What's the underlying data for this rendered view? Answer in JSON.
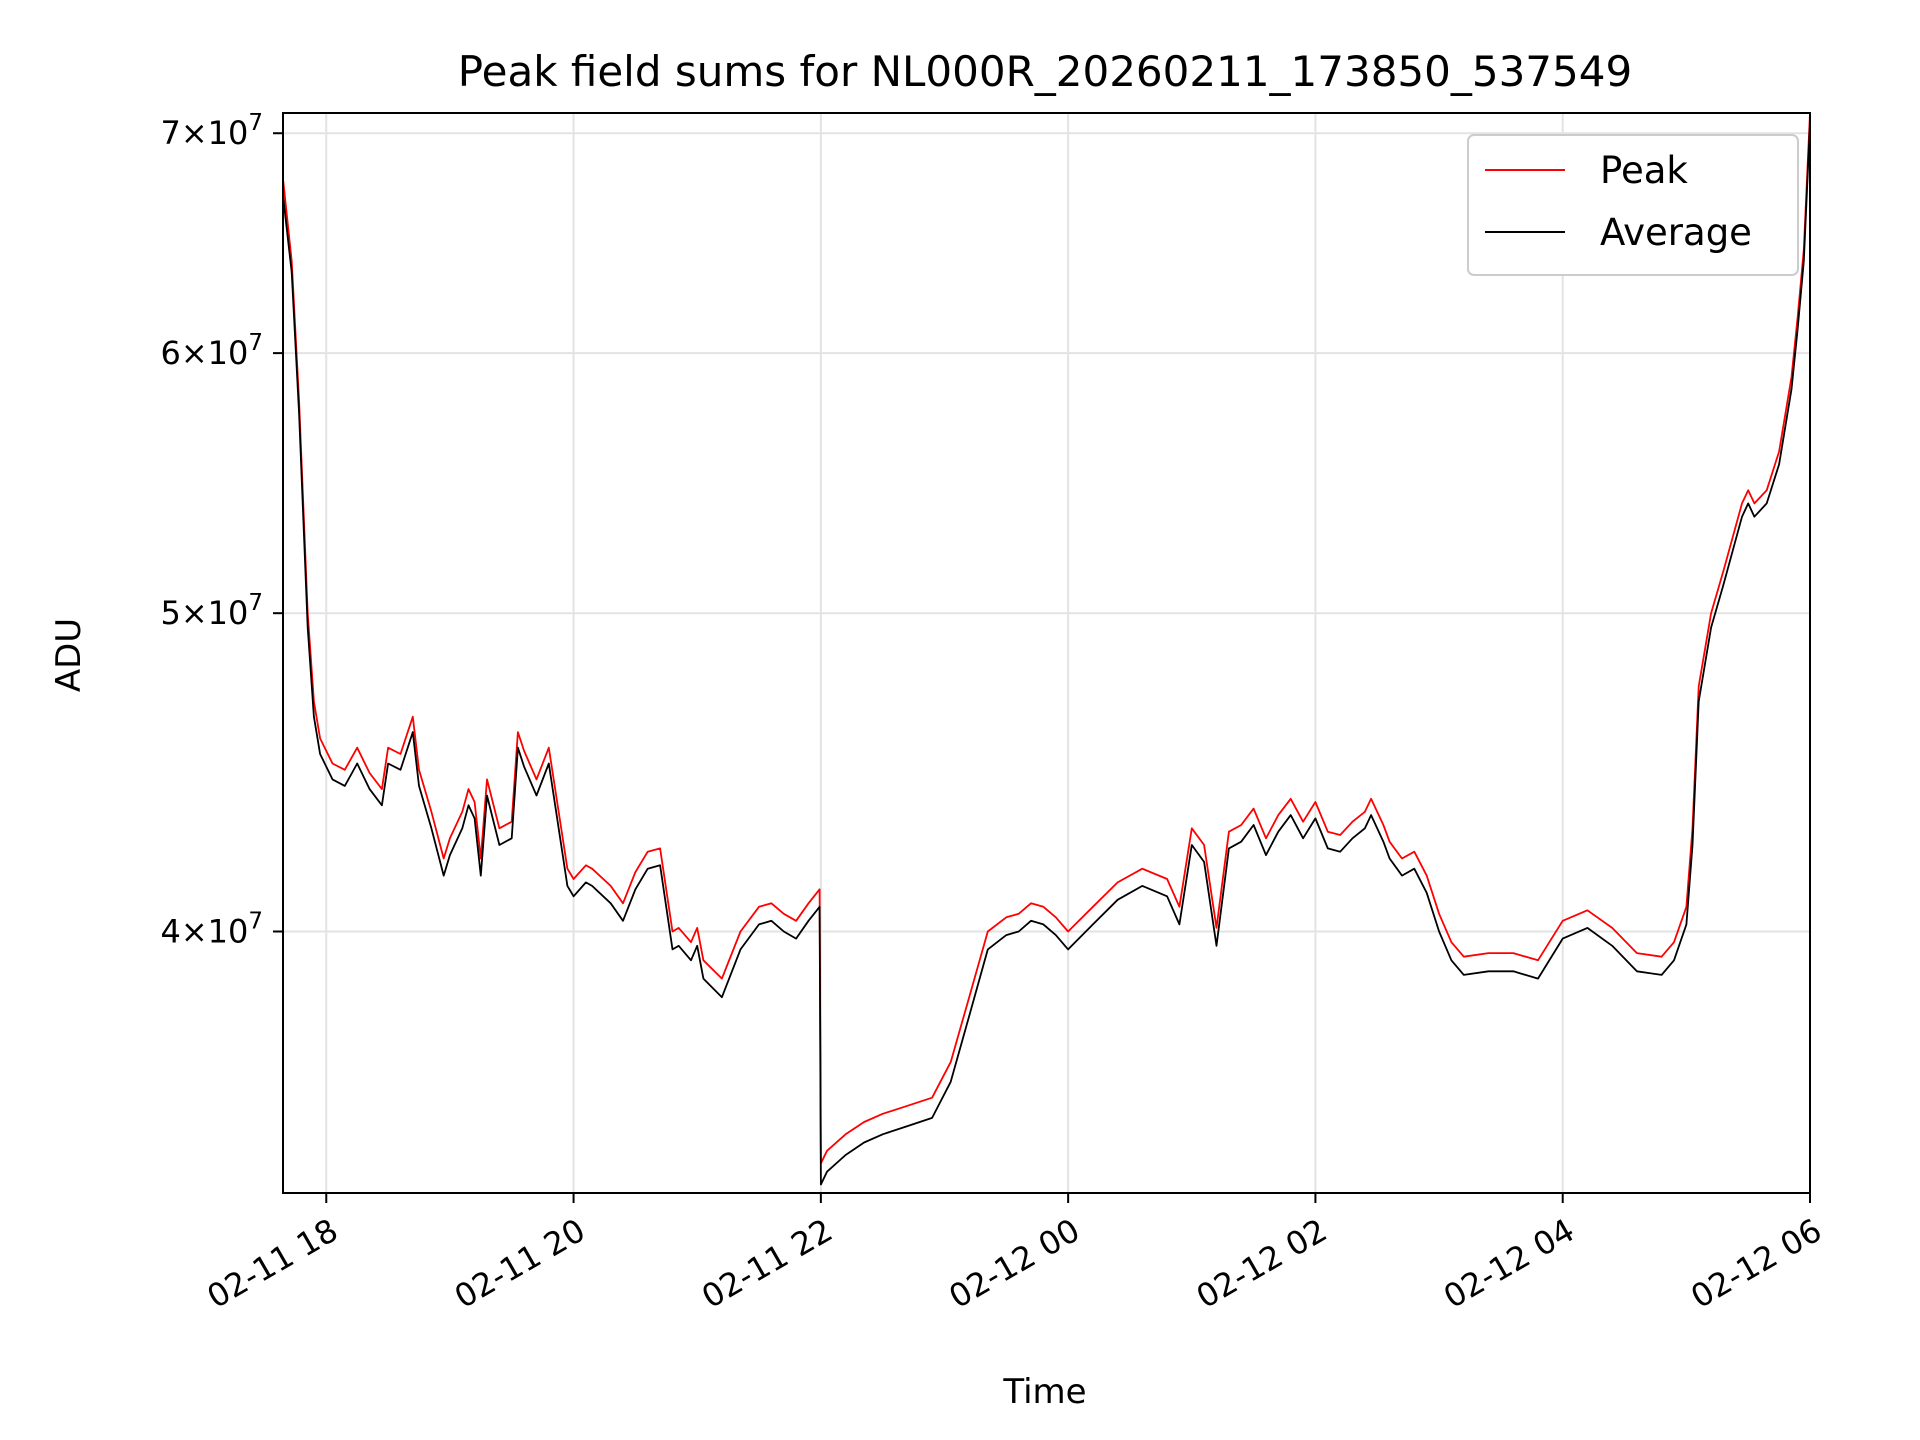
{
  "chart_data": {
    "type": "line",
    "title": "Peak field sums for NL000R_20260211_173850_537549",
    "xlabel": "Time",
    "ylabel": "ADU",
    "x_unit": "hours since 2026-02-11 00:00",
    "xlim": [
      17.65,
      30.0
    ],
    "ylim": [
      33300000,
      71000000
    ],
    "yscale": "log",
    "grid": true,
    "legend_position": "top-right",
    "x_ticks": [
      {
        "value": 18,
        "label": "02-11 18"
      },
      {
        "value": 20,
        "label": "02-11 20"
      },
      {
        "value": 22,
        "label": "02-11 22"
      },
      {
        "value": 24,
        "label": "02-12 00"
      },
      {
        "value": 26,
        "label": "02-12 02"
      },
      {
        "value": 28,
        "label": "02-12 04"
      },
      {
        "value": 30,
        "label": "02-12 06"
      }
    ],
    "y_ticks": [
      {
        "value": 40000000,
        "mantissa": "4",
        "exp": "7"
      },
      {
        "value": 50000000,
        "mantissa": "5",
        "exp": "7"
      },
      {
        "value": 60000000,
        "mantissa": "6",
        "exp": "7"
      },
      {
        "value": 70000000,
        "mantissa": "7",
        "exp": "7"
      }
    ],
    "series": [
      {
        "name": "Peak",
        "color": "#ff0000",
        "x": [
          17.65,
          17.72,
          17.78,
          17.85,
          17.9,
          17.95,
          18.05,
          18.15,
          18.25,
          18.35,
          18.45,
          18.5,
          18.6,
          18.7,
          18.75,
          18.85,
          18.95,
          19.0,
          19.1,
          19.15,
          19.2,
          19.25,
          19.3,
          19.4,
          19.5,
          19.55,
          19.6,
          19.7,
          19.8,
          19.9,
          19.95,
          20.0,
          20.1,
          20.15,
          20.3,
          20.4,
          20.5,
          20.6,
          20.7,
          20.8,
          20.85,
          20.95,
          21.0,
          21.05,
          21.2,
          21.35,
          21.5,
          21.6,
          21.7,
          21.8,
          21.9,
          21.99,
          22.0,
          22.05,
          22.2,
          22.35,
          22.5,
          22.7,
          22.9,
          23.05,
          23.2,
          23.35,
          23.5,
          23.6,
          23.7,
          23.8,
          23.9,
          24.0,
          24.2,
          24.4,
          24.6,
          24.8,
          24.9,
          25.0,
          25.1,
          25.2,
          25.3,
          25.4,
          25.5,
          25.6,
          25.7,
          25.8,
          25.9,
          26.0,
          26.1,
          26.2,
          26.3,
          26.4,
          26.45,
          26.55,
          26.6,
          26.7,
          26.8,
          26.9,
          27.0,
          27.1,
          27.2,
          27.4,
          27.6,
          27.8,
          28.0,
          28.2,
          28.4,
          28.6,
          28.8,
          28.9,
          29.0,
          29.05,
          29.1,
          29.2,
          29.3,
          29.45,
          29.5,
          29.55,
          29.65,
          29.75,
          29.85,
          29.9,
          29.95,
          30.0
        ],
        "y": [
          67800000,
          64000000,
          58000000,
          50000000,
          47000000,
          45800000,
          45000000,
          44800000,
          45500000,
          44700000,
          44200000,
          45500000,
          45300000,
          46500000,
          44800000,
          43500000,
          42100000,
          42700000,
          43500000,
          44200000,
          43800000,
          42100000,
          44500000,
          43000000,
          43200000,
          46000000,
          45400000,
          44500000,
          45500000,
          43000000,
          41800000,
          41500000,
          41900000,
          41800000,
          41300000,
          40800000,
          41700000,
          42300000,
          42400000,
          40000000,
          40100000,
          39700000,
          40100000,
          39200000,
          38700000,
          40000000,
          40700000,
          40800000,
          40500000,
          40300000,
          40800000,
          41200000,
          34000000,
          34300000,
          34700000,
          35000000,
          35200000,
          35400000,
          35600000,
          36500000,
          38200000,
          40000000,
          40400000,
          40500000,
          40800000,
          40700000,
          40400000,
          40000000,
          40700000,
          41400000,
          41800000,
          41500000,
          40700000,
          43000000,
          42500000,
          40100000,
          42900000,
          43100000,
          43600000,
          42700000,
          43400000,
          43900000,
          43200000,
          43800000,
          42900000,
          42800000,
          43200000,
          43500000,
          43900000,
          43100000,
          42600000,
          42100000,
          42300000,
          41600000,
          40500000,
          39700000,
          39300000,
          39400000,
          39400000,
          39200000,
          40300000,
          40600000,
          40100000,
          39400000,
          39300000,
          39700000,
          40700000,
          43000000,
          47500000,
          50000000,
          51500000,
          54000000,
          54500000,
          54000000,
          54500000,
          56000000,
          59000000,
          61500000,
          64500000,
          71000000
        ]
      },
      {
        "name": "Average",
        "color": "#000000",
        "x": [
          17.65,
          17.72,
          17.78,
          17.85,
          17.9,
          17.95,
          18.05,
          18.15,
          18.25,
          18.35,
          18.45,
          18.5,
          18.6,
          18.7,
          18.75,
          18.85,
          18.95,
          19.0,
          19.1,
          19.15,
          19.2,
          19.25,
          19.3,
          19.4,
          19.5,
          19.55,
          19.6,
          19.7,
          19.8,
          19.9,
          19.95,
          20.0,
          20.1,
          20.15,
          20.3,
          20.4,
          20.5,
          20.6,
          20.7,
          20.8,
          20.85,
          20.95,
          21.0,
          21.05,
          21.2,
          21.35,
          21.5,
          21.6,
          21.7,
          21.8,
          21.9,
          21.99,
          22.0,
          22.05,
          22.2,
          22.35,
          22.5,
          22.7,
          22.9,
          23.05,
          23.2,
          23.35,
          23.5,
          23.6,
          23.7,
          23.8,
          23.9,
          24.0,
          24.2,
          24.4,
          24.6,
          24.8,
          24.9,
          25.0,
          25.1,
          25.2,
          25.3,
          25.4,
          25.5,
          25.6,
          25.7,
          25.8,
          25.9,
          26.0,
          26.1,
          26.2,
          26.3,
          26.4,
          26.45,
          26.55,
          26.6,
          26.7,
          26.8,
          26.9,
          27.0,
          27.1,
          27.2,
          27.4,
          27.6,
          27.8,
          28.0,
          28.2,
          28.4,
          28.6,
          28.8,
          28.9,
          29.0,
          29.05,
          29.1,
          29.2,
          29.3,
          29.45,
          29.5,
          29.55,
          29.65,
          29.75,
          29.85,
          29.9,
          29.95,
          30.0
        ],
        "y": [
          67000000,
          63500000,
          57500000,
          49500000,
          46500000,
          45300000,
          44500000,
          44300000,
          45000000,
          44200000,
          43700000,
          45000000,
          44800000,
          46000000,
          44300000,
          43000000,
          41600000,
          42200000,
          43000000,
          43700000,
          43300000,
          41600000,
          44000000,
          42500000,
          42700000,
          45500000,
          44900000,
          44000000,
          45000000,
          42500000,
          41300000,
          41000000,
          41400000,
          41300000,
          40800000,
          40300000,
          41200000,
          41800000,
          41900000,
          39500000,
          39600000,
          39200000,
          39600000,
          38700000,
          38200000,
          39500000,
          40200000,
          40300000,
          40000000,
          39800000,
          40300000,
          40700000,
          33500000,
          33800000,
          34200000,
          34500000,
          34700000,
          34900000,
          35100000,
          36000000,
          37700000,
          39500000,
          39900000,
          40000000,
          40300000,
          40200000,
          39900000,
          39500000,
          40200000,
          40900000,
          41300000,
          41000000,
          40200000,
          42500000,
          42000000,
          39600000,
          42400000,
          42600000,
          43100000,
          42200000,
          42900000,
          43400000,
          42700000,
          43300000,
          42400000,
          42300000,
          42700000,
          43000000,
          43400000,
          42600000,
          42100000,
          41600000,
          41800000,
          41100000,
          40000000,
          39200000,
          38800000,
          38900000,
          38900000,
          38700000,
          39800000,
          40100000,
          39600000,
          38900000,
          38800000,
          39200000,
          40200000,
          42500000,
          47000000,
          49500000,
          51000000,
          53500000,
          54000000,
          53500000,
          54000000,
          55500000,
          58500000,
          61000000,
          64000000,
          70500000
        ]
      }
    ]
  }
}
